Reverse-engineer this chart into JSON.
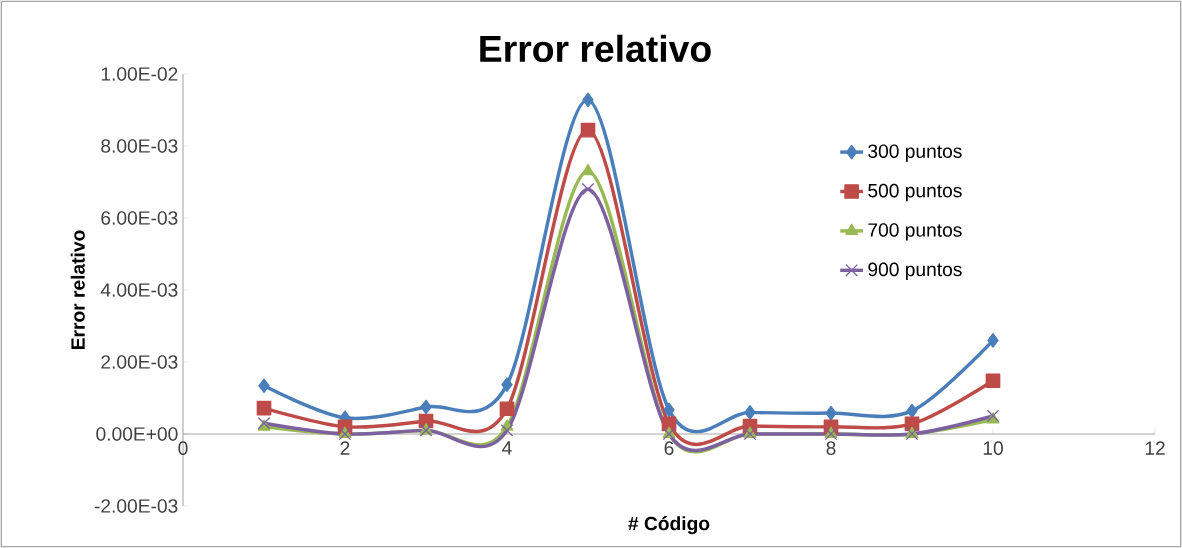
{
  "chart_data": {
    "type": "line",
    "title": "Error relativo",
    "xlabel": "# Código",
    "ylabel": "Error relativo",
    "x": [
      1,
      2,
      3,
      4,
      5,
      6,
      7,
      8,
      9,
      10
    ],
    "series": [
      {
        "name": "300 puntos",
        "color": "#4a7ebb",
        "marker": "diamond",
        "values": [
          0.00134,
          0.00045,
          0.00075,
          0.00137,
          0.00928,
          0.00067,
          0.0006,
          0.00058,
          0.00064,
          0.0026
        ]
      },
      {
        "name": "500 puntos",
        "color": "#be4b48",
        "marker": "square",
        "values": [
          0.00072,
          0.0002,
          0.00036,
          0.0007,
          0.00844,
          0.00028,
          0.00022,
          0.0002,
          0.00028,
          0.00148
        ]
      },
      {
        "name": "700 puntos",
        "color": "#98b954",
        "marker": "triangle",
        "values": [
          0.0002,
          0.0,
          0.0001,
          0.0002,
          0.0073,
          0.0,
          0.0,
          0.0,
          0.0,
          0.0004
        ]
      },
      {
        "name": "900 puntos",
        "color": "#7d60a0",
        "marker": "cross",
        "values": [
          0.0003,
          0.0,
          0.0001,
          0.0001,
          0.0068,
          0.0,
          0.0,
          0.0,
          0.0,
          0.0005
        ]
      }
    ],
    "xlim": [
      0,
      12
    ],
    "xticks": [
      0,
      2,
      4,
      6,
      8,
      10,
      12
    ],
    "ylim": [
      -0.002,
      0.01
    ],
    "yticks": [
      {
        "value": -0.002,
        "label": "-2.00E-03"
      },
      {
        "value": 0,
        "label": "0.00E+00"
      },
      {
        "value": 0.002,
        "label": "2.00E-03"
      },
      {
        "value": 0.004,
        "label": "4.00E-03"
      },
      {
        "value": 0.006,
        "label": "6.00E-03"
      },
      {
        "value": 0.008,
        "label": "8.00E-03"
      },
      {
        "value": 0.01,
        "label": "1.00E-02"
      }
    ],
    "grid": false,
    "legend": "right",
    "line_style": "solid"
  }
}
